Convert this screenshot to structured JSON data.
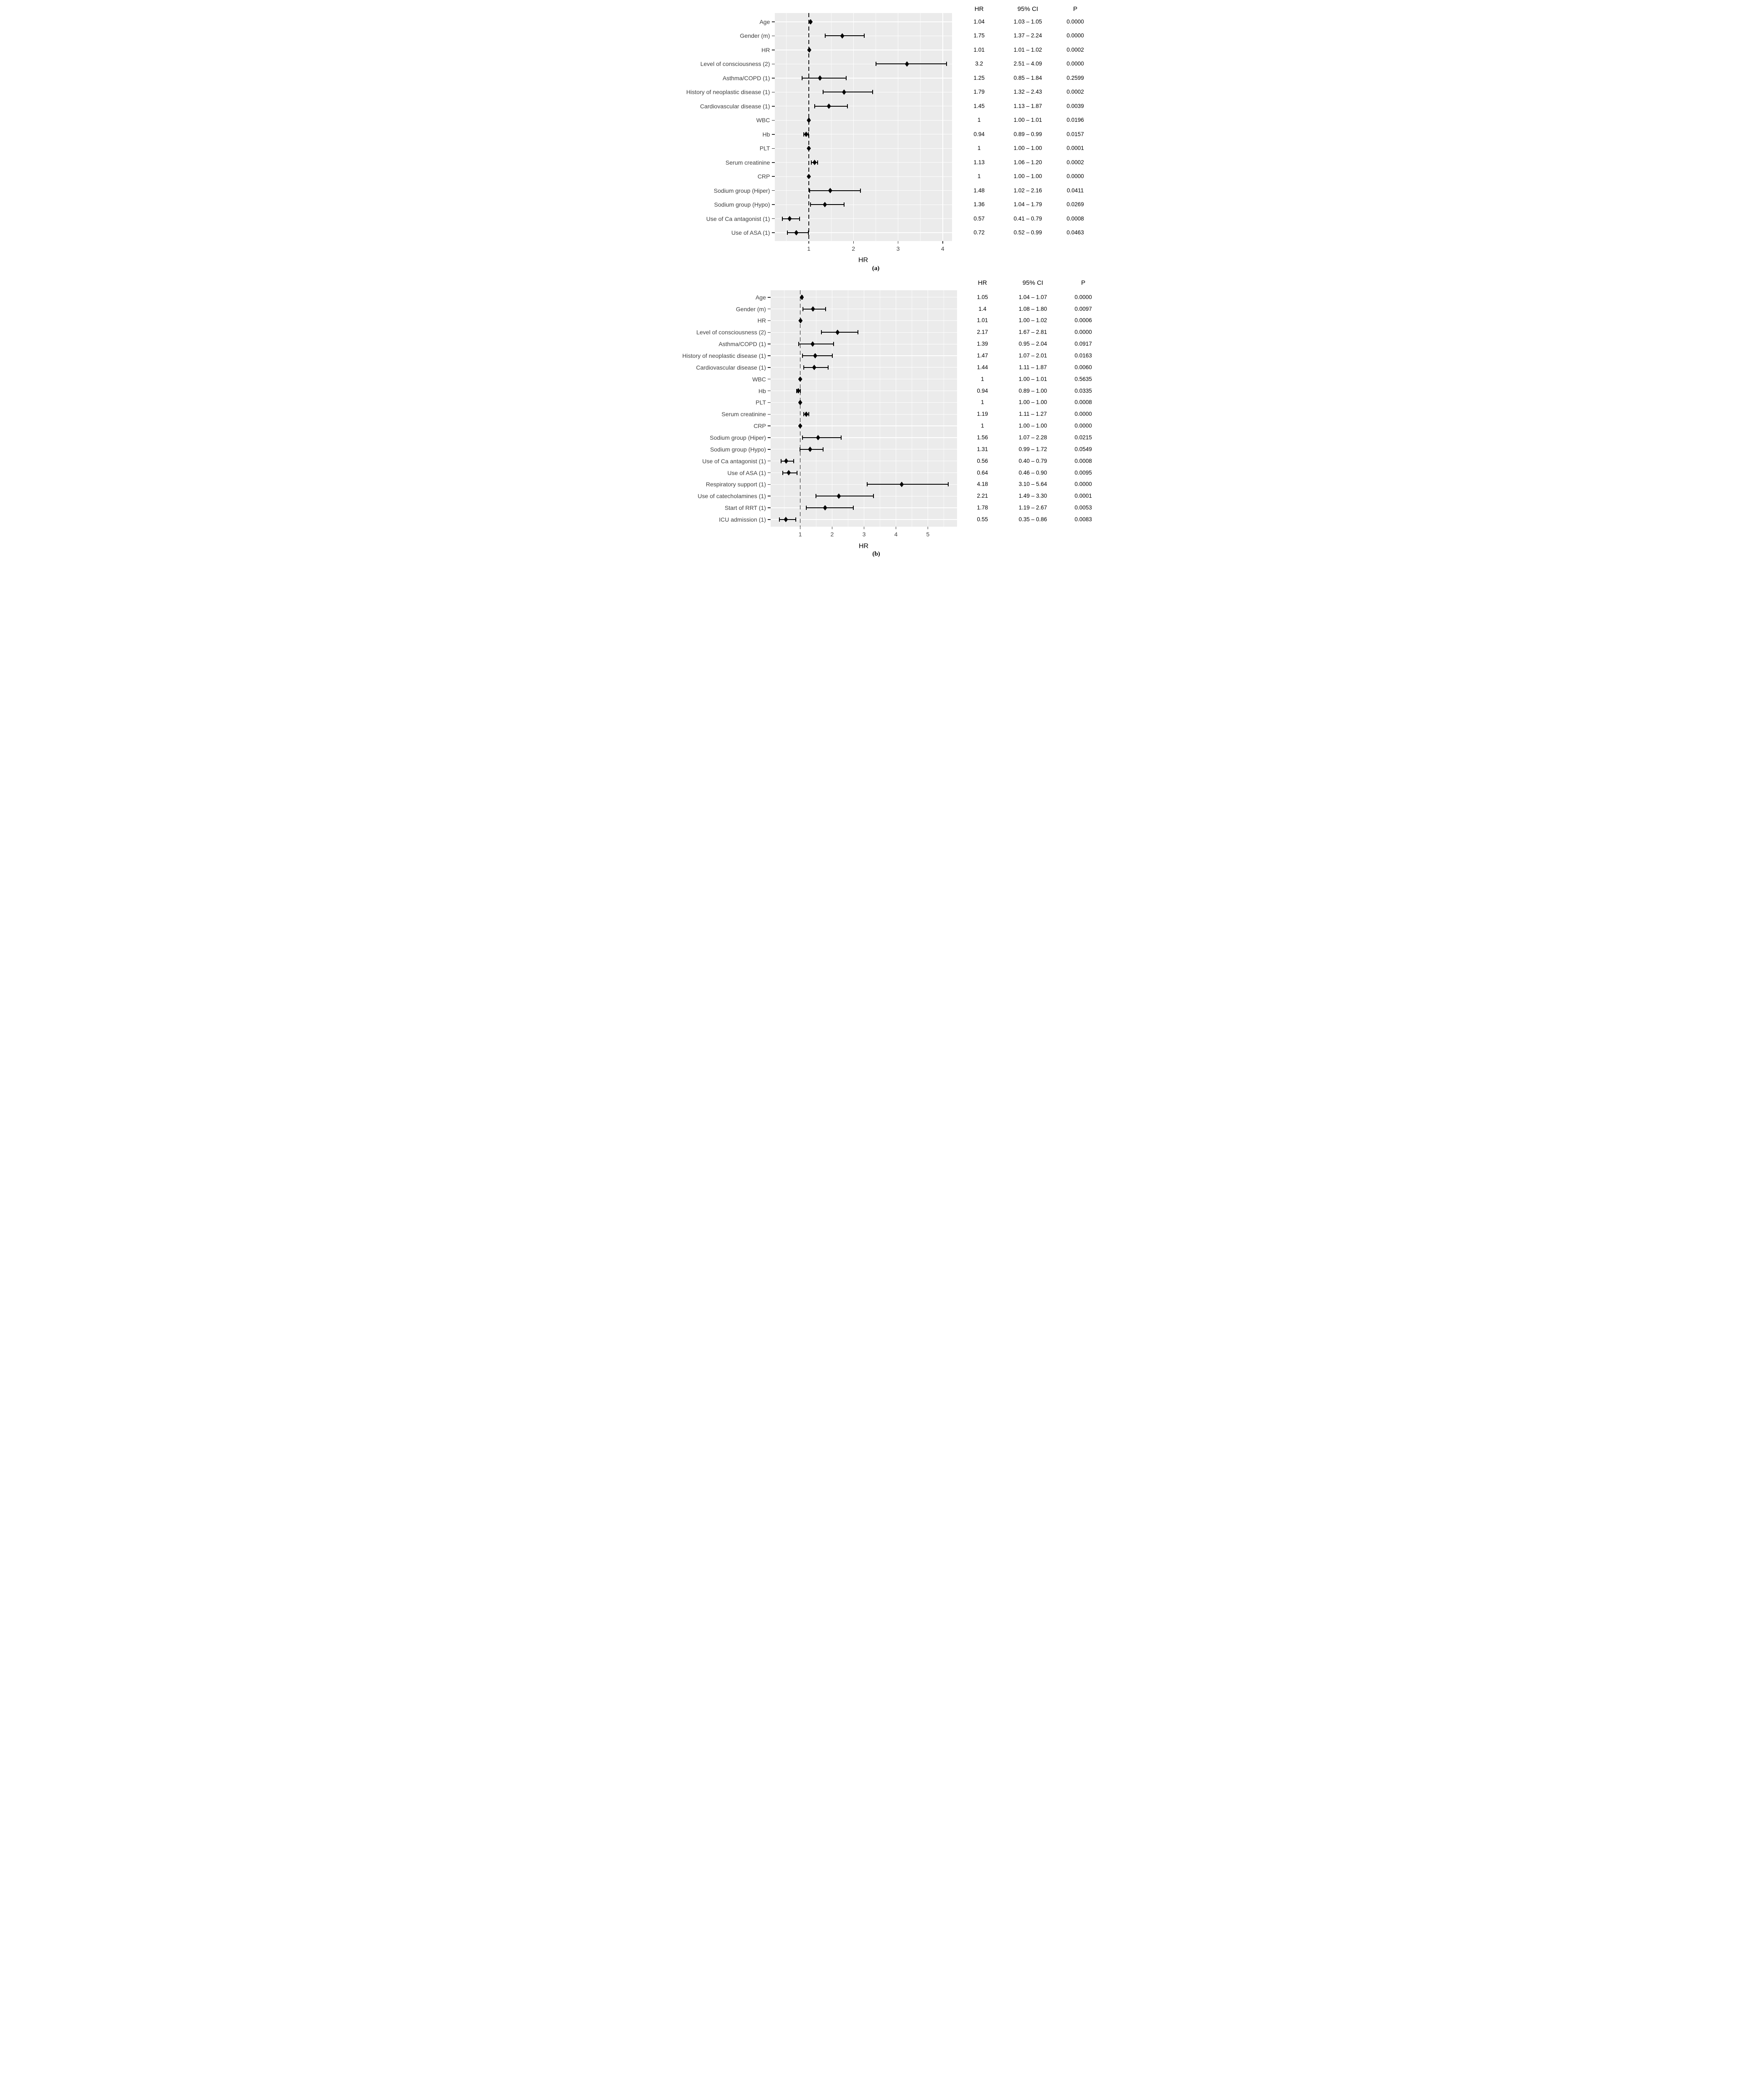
{
  "colors": {
    "plot_background": "#EBEBEB",
    "gridline": "#FFFFFF",
    "marker": "#000000",
    "axis_text": "#3F3F3F",
    "table_text": "#000000",
    "reference_line": "#141414"
  },
  "chart_data": [
    {
      "id": "a",
      "type": "scatter",
      "subtype": "forest_plot",
      "caption": "(a)",
      "xlabel": "HR",
      "x_ticks": [
        "1",
        "2",
        "3",
        "4"
      ],
      "xlim": [
        0.24,
        4.27
      ],
      "reference_line_x": 1,
      "grid": true,
      "legend_position": "none",
      "table_headers": {
        "hr": "HR",
        "ci": "95% CI",
        "p": "P"
      },
      "rows": [
        {
          "label": "Age",
          "hr": 1.04,
          "ci_low": 1.03,
          "ci_high": 1.05,
          "hr_text": "1.04",
          "ci_text": "1.03 – 1.05",
          "p_text": "0.0000"
        },
        {
          "label": "Gender (m)",
          "hr": 1.75,
          "ci_low": 1.37,
          "ci_high": 2.24,
          "hr_text": "1.75",
          "ci_text": "1.37 – 2.24",
          "p_text": "0.0000"
        },
        {
          "label": "HR",
          "hr": 1.01,
          "ci_low": 1.01,
          "ci_high": 1.02,
          "hr_text": "1.01",
          "ci_text": "1.01 – 1.02",
          "p_text": "0.0002"
        },
        {
          "label": "Level of consciousness (2)",
          "hr": 3.2,
          "ci_low": 2.51,
          "ci_high": 4.09,
          "hr_text": "3.2",
          "ci_text": "2.51 – 4.09",
          "p_text": "0.0000"
        },
        {
          "label": "Asthma/COPD (1)",
          "hr": 1.25,
          "ci_low": 0.85,
          "ci_high": 1.84,
          "hr_text": "1.25",
          "ci_text": "0.85 – 1.84",
          "p_text": "0.2599"
        },
        {
          "label": "History of neoplastic disease (1)",
          "hr": 1.79,
          "ci_low": 1.32,
          "ci_high": 2.43,
          "hr_text": "1.79",
          "ci_text": "1.32 – 2.43",
          "p_text": "0.0002"
        },
        {
          "label": "Cardiovascular disease (1)",
          "hr": 1.45,
          "ci_low": 1.13,
          "ci_high": 1.87,
          "hr_text": "1.45",
          "ci_text": "1.13 – 1.87",
          "p_text": "0.0039"
        },
        {
          "label": "WBC",
          "hr": 1.0,
          "ci_low": 1.0,
          "ci_high": 1.01,
          "hr_text": "1",
          "ci_text": "1.00 – 1.01",
          "p_text": "0.0196"
        },
        {
          "label": "Hb",
          "hr": 0.94,
          "ci_low": 0.89,
          "ci_high": 0.99,
          "hr_text": "0.94",
          "ci_text": "0.89 – 0.99",
          "p_text": "0.0157"
        },
        {
          "label": "PLT",
          "hr": 1.0,
          "ci_low": 1.0,
          "ci_high": 1.0,
          "hr_text": "1",
          "ci_text": "1.00 – 1.00",
          "p_text": "0.0001"
        },
        {
          "label": "Serum creatinine",
          "hr": 1.13,
          "ci_low": 1.06,
          "ci_high": 1.2,
          "hr_text": "1.13",
          "ci_text": "1.06 – 1.20",
          "p_text": "0.0002"
        },
        {
          "label": "CRP",
          "hr": 1.0,
          "ci_low": 1.0,
          "ci_high": 1.0,
          "hr_text": "1",
          "ci_text": "1.00 – 1.00",
          "p_text": "0.0000"
        },
        {
          "label": "Sodium group (Hiper)",
          "hr": 1.48,
          "ci_low": 1.02,
          "ci_high": 2.16,
          "hr_text": "1.48",
          "ci_text": "1.02 – 2.16",
          "p_text": "0.0411"
        },
        {
          "label": "Sodium group (Hypo)",
          "hr": 1.36,
          "ci_low": 1.04,
          "ci_high": 1.79,
          "hr_text": "1.36",
          "ci_text": "1.04 – 1.79",
          "p_text": "0.0269"
        },
        {
          "label": "Use of Ca antagonist (1)",
          "hr": 0.57,
          "ci_low": 0.41,
          "ci_high": 0.79,
          "hr_text": "0.57",
          "ci_text": "0.41 – 0.79",
          "p_text": "0.0008"
        },
        {
          "label": "Use of ASA (1)",
          "hr": 0.72,
          "ci_low": 0.52,
          "ci_high": 0.99,
          "hr_text": "0.72",
          "ci_text": "0.52 – 0.99",
          "p_text": "0.0463"
        }
      ]
    },
    {
      "id": "b",
      "type": "scatter",
      "subtype": "forest_plot",
      "caption": "(b)",
      "xlabel": "HR",
      "x_ticks": [
        "1",
        "2",
        "3",
        "4",
        "5"
      ],
      "xlim": [
        0.07,
        5.91
      ],
      "reference_line_x": 1,
      "grid": true,
      "legend_position": "none",
      "table_headers": {
        "hr": "HR",
        "ci": "95% CI",
        "p": "P"
      },
      "rows": [
        {
          "label": "Age",
          "hr": 1.05,
          "ci_low": 1.04,
          "ci_high": 1.07,
          "hr_text": "1.05",
          "ci_text": "1.04 – 1.07",
          "p_text": "0.0000"
        },
        {
          "label": "Gender (m)",
          "hr": 1.4,
          "ci_low": 1.08,
          "ci_high": 1.8,
          "hr_text": "1.4",
          "ci_text": "1.08 – 1.80",
          "p_text": "0.0097"
        },
        {
          "label": "HR",
          "hr": 1.01,
          "ci_low": 1.0,
          "ci_high": 1.02,
          "hr_text": "1.01",
          "ci_text": "1.00 – 1.02",
          "p_text": "0.0006"
        },
        {
          "label": "Level of consciousness (2)",
          "hr": 2.17,
          "ci_low": 1.67,
          "ci_high": 2.81,
          "hr_text": "2.17",
          "ci_text": "1.67 – 2.81",
          "p_text": "0.0000"
        },
        {
          "label": "Asthma/COPD (1)",
          "hr": 1.39,
          "ci_low": 0.95,
          "ci_high": 2.04,
          "hr_text": "1.39",
          "ci_text": "0.95 – 2.04",
          "p_text": "0.0917"
        },
        {
          "label": "History of neoplastic disease (1)",
          "hr": 1.47,
          "ci_low": 1.07,
          "ci_high": 2.01,
          "hr_text": "1.47",
          "ci_text": "1.07 – 2.01",
          "p_text": "0.0163"
        },
        {
          "label": "Cardiovascular disease (1)",
          "hr": 1.44,
          "ci_low": 1.11,
          "ci_high": 1.87,
          "hr_text": "1.44",
          "ci_text": "1.11 – 1.87",
          "p_text": "0.0060"
        },
        {
          "label": "WBC",
          "hr": 1.0,
          "ci_low": 1.0,
          "ci_high": 1.01,
          "hr_text": "1",
          "ci_text": "1.00 – 1.01",
          "p_text": "0.5635"
        },
        {
          "label": "Hb",
          "hr": 0.94,
          "ci_low": 0.89,
          "ci_high": 1.0,
          "hr_text": "0.94",
          "ci_text": "0.89 – 1.00",
          "p_text": "0.0335"
        },
        {
          "label": "PLT",
          "hr": 1.0,
          "ci_low": 1.0,
          "ci_high": 1.0,
          "hr_text": "1",
          "ci_text": "1.00 – 1.00",
          "p_text": "0.0008"
        },
        {
          "label": "Serum creatinine",
          "hr": 1.19,
          "ci_low": 1.11,
          "ci_high": 1.27,
          "hr_text": "1.19",
          "ci_text": "1.11 – 1.27",
          "p_text": "0.0000"
        },
        {
          "label": "CRP",
          "hr": 1.0,
          "ci_low": 1.0,
          "ci_high": 1.0,
          "hr_text": "1",
          "ci_text": "1.00 – 1.00",
          "p_text": "0.0000"
        },
        {
          "label": "Sodium group (Hiper)",
          "hr": 1.56,
          "ci_low": 1.07,
          "ci_high": 2.28,
          "hr_text": "1.56",
          "ci_text": "1.07 – 2.28",
          "p_text": "0.0215"
        },
        {
          "label": "Sodium group (Hypo)",
          "hr": 1.31,
          "ci_low": 0.99,
          "ci_high": 1.72,
          "hr_text": "1.31",
          "ci_text": "0.99 – 1.72",
          "p_text": "0.0549"
        },
        {
          "label": "Use of Ca antagonist (1)",
          "hr": 0.56,
          "ci_low": 0.4,
          "ci_high": 0.79,
          "hr_text": "0.56",
          "ci_text": "0.40 – 0.79",
          "p_text": "0.0008"
        },
        {
          "label": "Use of ASA (1)",
          "hr": 0.64,
          "ci_low": 0.46,
          "ci_high": 0.9,
          "hr_text": "0.64",
          "ci_text": "0.46 – 0.90",
          "p_text": "0.0095"
        },
        {
          "label": "Respiratory support (1)",
          "hr": 4.18,
          "ci_low": 3.1,
          "ci_high": 5.64,
          "hr_text": "4.18",
          "ci_text": "3.10 – 5.64",
          "p_text": "0.0000"
        },
        {
          "label": "Use of catecholamines (1)",
          "hr": 2.21,
          "ci_low": 1.49,
          "ci_high": 3.3,
          "hr_text": "2.21",
          "ci_text": "1.49 – 3.30",
          "p_text": "0.0001"
        },
        {
          "label": "Start of RRT (1)",
          "hr": 1.78,
          "ci_low": 1.19,
          "ci_high": 2.67,
          "hr_text": "1.78",
          "ci_text": "1.19 – 2.67",
          "p_text": "0.0053"
        },
        {
          "label": "ICU admission (1)",
          "hr": 0.55,
          "ci_low": 0.35,
          "ci_high": 0.86,
          "hr_text": "0.55",
          "ci_text": "0.35 – 0.86",
          "p_text": "0.0083"
        }
      ]
    }
  ]
}
